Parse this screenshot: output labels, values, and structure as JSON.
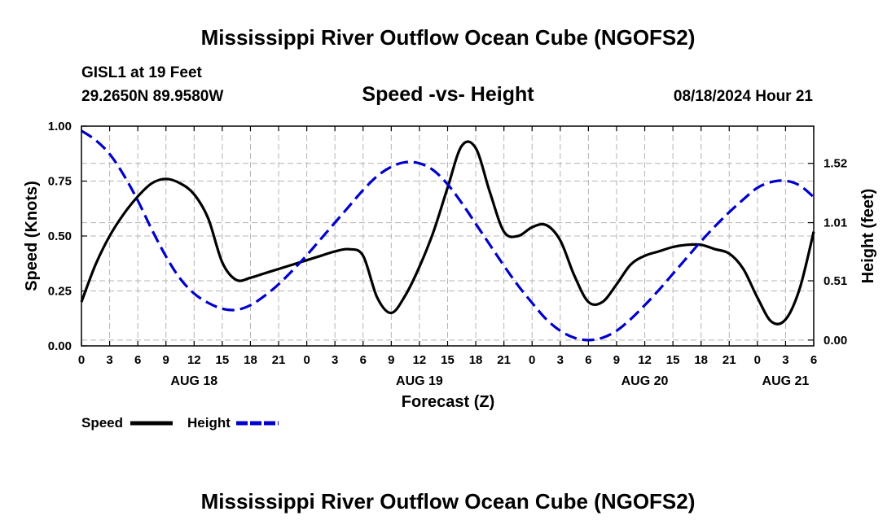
{
  "header": {
    "title": "Mississippi River Outflow Ocean Cube (NGOFS2)",
    "station": "GISL1 at 19 Feet",
    "coords": "29.2650N  89.9580W",
    "datetime": "08/18/2024 Hour 21",
    "footer_title": "Mississippi River Outflow Ocean Cube (NGOFS2)"
  },
  "chart_data": {
    "type": "line",
    "title": "Speed -vs- Height",
    "xlabel": "Forecast (Z)",
    "ylabel": "Speed (Knots)",
    "y2label": "Height (feet)",
    "xlim": [
      0,
      78
    ],
    "ylim": [
      0,
      1.0
    ],
    "y2lim": [
      -0.05,
      1.84
    ],
    "x_ticks": [
      0,
      3,
      6,
      9,
      12,
      15,
      18,
      21,
      24,
      27,
      30,
      33,
      36,
      39,
      42,
      45,
      48,
      51,
      54,
      57,
      60,
      63,
      66,
      69,
      72,
      75,
      78
    ],
    "x_tick_labels": [
      "0",
      "3",
      "6",
      "9",
      "12",
      "15",
      "18",
      "21",
      "0",
      "3",
      "6",
      "9",
      "12",
      "15",
      "18",
      "21",
      "0",
      "3",
      "6",
      "9",
      "12",
      "15",
      "18",
      "21",
      "0",
      "3",
      "6"
    ],
    "day_labels": [
      {
        "x": 12,
        "label": "AUG 18"
      },
      {
        "x": 36,
        "label": "AUG 19"
      },
      {
        "x": 60,
        "label": "AUG 20"
      },
      {
        "x": 75,
        "label": "AUG 21"
      }
    ],
    "y_ticks": [
      0.0,
      0.25,
      0.5,
      0.75,
      1.0
    ],
    "y_tick_labels": [
      "0.00",
      "0.25",
      "0.50",
      "0.75",
      "1.00"
    ],
    "y2_ticks": [
      0.0,
      0.51,
      1.01,
      1.52
    ],
    "y2_tick_labels": [
      "0.00",
      "0.51",
      "1.01",
      "1.52"
    ],
    "legend": [
      {
        "name": "Speed",
        "color": "#000000",
        "dash": "solid"
      },
      {
        "name": "Height",
        "color": "#0000cc",
        "dash": "dashed"
      }
    ],
    "series": [
      {
        "name": "Speed",
        "axis": "left",
        "color": "#000000",
        "x": [
          0,
          1.5,
          3,
          4.5,
          6,
          7.5,
          9,
          10.5,
          12,
          13.5,
          15,
          16.5,
          18,
          19.5,
          21,
          22.5,
          24,
          25.5,
          27,
          28.5,
          30,
          31.5,
          33,
          34.5,
          36,
          37.5,
          39,
          40.5,
          42,
          43.5,
          45,
          46.5,
          48,
          49.5,
          51,
          52.5,
          54,
          55.5,
          57,
          58.5,
          60,
          61.5,
          63,
          64.5,
          66,
          67.5,
          69,
          70.5,
          72,
          73.5,
          75,
          76.5,
          78
        ],
        "values": [
          0.2,
          0.37,
          0.5,
          0.6,
          0.68,
          0.74,
          0.76,
          0.74,
          0.69,
          0.58,
          0.38,
          0.3,
          0.31,
          0.33,
          0.35,
          0.37,
          0.39,
          0.41,
          0.43,
          0.44,
          0.41,
          0.22,
          0.15,
          0.23,
          0.36,
          0.52,
          0.72,
          0.91,
          0.9,
          0.7,
          0.52,
          0.5,
          0.54,
          0.55,
          0.48,
          0.32,
          0.2,
          0.2,
          0.28,
          0.37,
          0.41,
          0.43,
          0.45,
          0.46,
          0.46,
          0.44,
          0.42,
          0.35,
          0.22,
          0.11,
          0.12,
          0.26,
          0.52
        ]
      },
      {
        "name": "Height",
        "axis": "right",
        "color": "#0000cc",
        "x": [
          0,
          1.5,
          3,
          4.5,
          6,
          7.5,
          9,
          10.5,
          12,
          13.5,
          15,
          16.5,
          18,
          19.5,
          21,
          22.5,
          24,
          25.5,
          27,
          28.5,
          30,
          31.5,
          33,
          34.5,
          36,
          37.5,
          39,
          40.5,
          42,
          43.5,
          45,
          46.5,
          48,
          49.5,
          51,
          52.5,
          54,
          55.5,
          57,
          58.5,
          60,
          61.5,
          63,
          64.5,
          66,
          67.5,
          69,
          70.5,
          72,
          73.5,
          75,
          76.5,
          78
        ],
        "values": [
          1.8,
          1.72,
          1.6,
          1.42,
          1.2,
          0.95,
          0.72,
          0.53,
          0.4,
          0.32,
          0.27,
          0.26,
          0.3,
          0.38,
          0.48,
          0.6,
          0.73,
          0.87,
          1.01,
          1.15,
          1.29,
          1.41,
          1.49,
          1.53,
          1.52,
          1.46,
          1.34,
          1.18,
          1.0,
          0.82,
          0.64,
          0.47,
          0.32,
          0.18,
          0.08,
          0.02,
          0.0,
          0.02,
          0.08,
          0.18,
          0.3,
          0.43,
          0.57,
          0.71,
          0.85,
          0.98,
          1.1,
          1.21,
          1.31,
          1.36,
          1.37,
          1.33,
          1.23
        ]
      }
    ]
  }
}
